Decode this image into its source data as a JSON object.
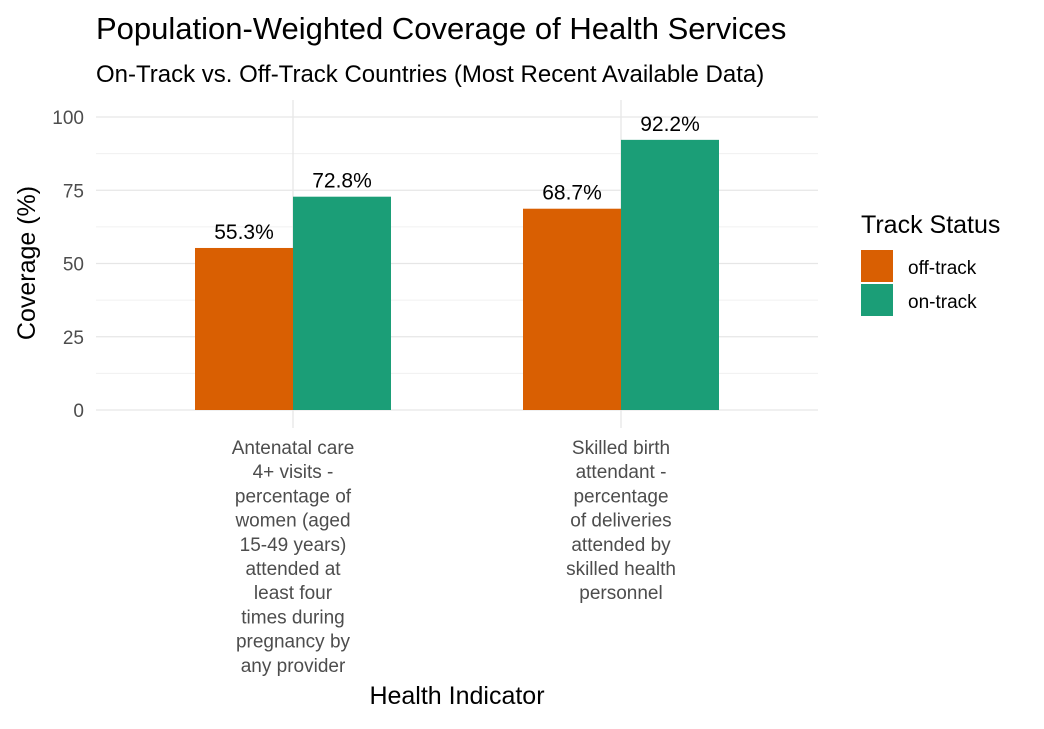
{
  "chart_data": {
    "type": "bar",
    "title": "Population-Weighted Coverage of Health Services",
    "subtitle": "On-Track vs. Off-Track Countries (Most Recent Available Data)",
    "xlabel": "Health Indicator",
    "ylabel": "Coverage (%)",
    "ylim": [
      0,
      100
    ],
    "yticks": [
      0,
      25,
      50,
      75,
      100
    ],
    "categories": [
      [
        "Antenatal care",
        "4+ visits -",
        "percentage of",
        "women (aged",
        "15-49 years)",
        "attended at",
        "least four",
        "times during",
        "pregnancy by",
        "any provider"
      ],
      [
        "Skilled birth",
        "attendant -",
        "percentage",
        "of deliveries",
        "attended by",
        "skilled health",
        "personnel"
      ]
    ],
    "series": [
      {
        "name": "off-track",
        "color": "#D95F02",
        "values": [
          55.3,
          68.7
        ],
        "labels": [
          "55.3%",
          "68.7%"
        ]
      },
      {
        "name": "on-track",
        "color": "#1B9E77",
        "values": [
          72.8,
          92.2
        ],
        "labels": [
          "72.8%",
          "92.2%"
        ]
      }
    ],
    "legend": {
      "title": "Track Status",
      "position": "right"
    },
    "grid": true
  }
}
